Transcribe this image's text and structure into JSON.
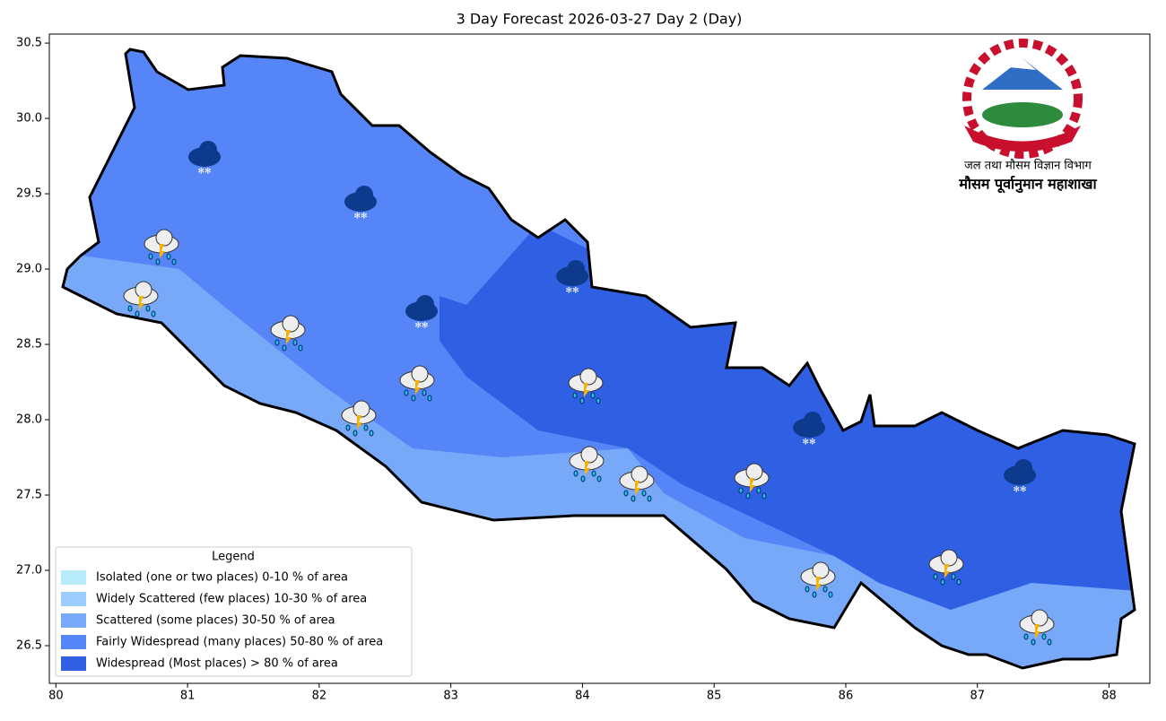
{
  "title": "3 Day Forecast 2026-03-27 Day 2 (Day)",
  "axes": {
    "xlim": [
      79.95,
      88.31
    ],
    "ylim": [
      26.25,
      30.56
    ],
    "xticks": [
      80,
      81,
      82,
      83,
      84,
      85,
      86,
      87,
      88
    ],
    "yticks": [
      {
        "value": 26.5,
        "label": "26.5"
      },
      {
        "value": 27,
        "label": "27.0"
      },
      {
        "value": 27.5,
        "label": "27.5"
      },
      {
        "value": 28,
        "label": "28.0"
      },
      {
        "value": 28.5,
        "label": "28.5"
      },
      {
        "value": 29,
        "label": "29.0"
      },
      {
        "value": 29.5,
        "label": "29.5"
      },
      {
        "value": 30,
        "label": "30.0"
      },
      {
        "value": 30.5,
        "label": "30.5"
      }
    ]
  },
  "legend": {
    "title": "Legend",
    "items": [
      {
        "label": "Isolated (one or two places)  0-10 % of area",
        "color": "#b9ecfb"
      },
      {
        "label": "Widely Scattered (few places)  10-30 % of area",
        "color": "#9ccbfd"
      },
      {
        "label": "Scattered (some places)  30-50 % of area",
        "color": "#78a8f8"
      },
      {
        "label": "Fairly Widespread (many places)  50-80 % of area",
        "color": "#5585f7"
      },
      {
        "label": "Widespread (Most places) > 80 % of area",
        "color": "#2f5fe3"
      }
    ]
  },
  "logo": {
    "line1": "जल तथा मौसम विज्ञान विभाग",
    "line2": "मौसम पूर्वानुमान महाशाखा"
  }
}
